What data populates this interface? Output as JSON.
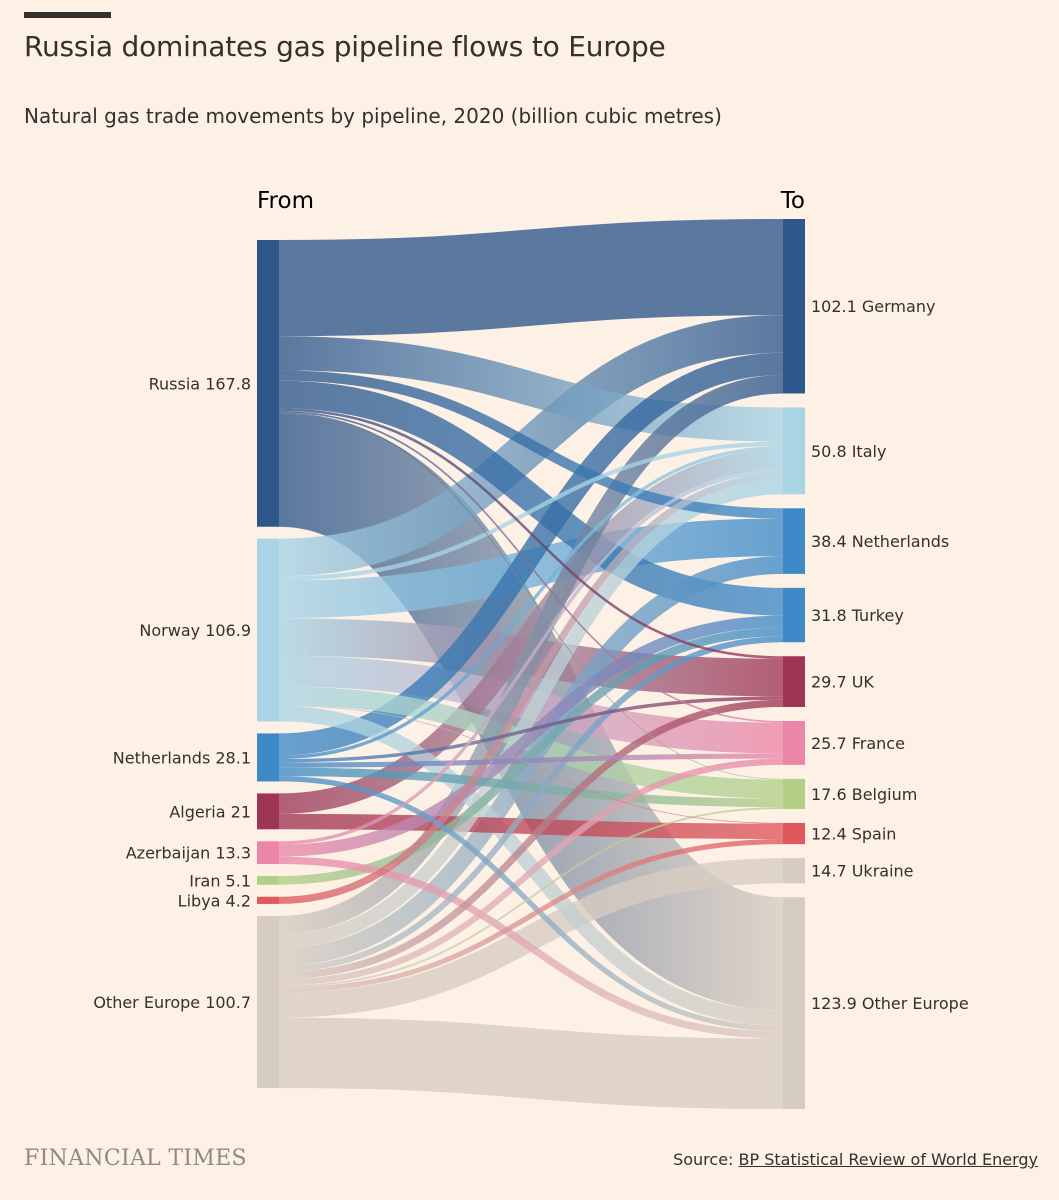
{
  "header": {
    "title": "Russia dominates gas pipeline flows to Europe",
    "subtitle": "Natural gas trade movements by pipeline, 2020 (billion cubic metres)"
  },
  "footer": {
    "logo": "FINANCIAL TIMES",
    "source_label": "Source:",
    "source_link": "BP Statistical Review of World Energy"
  },
  "chart_data": {
    "type": "sankey",
    "title": "Russia dominates gas pipeline flows to Europe",
    "subtitle": "Natural gas trade movements by pipeline, 2020 (billion cubic metres)",
    "column_labels": {
      "from": "From",
      "to": "To"
    },
    "sources": [
      {
        "name": "Russia",
        "value": 167.8,
        "label": "Russia 167.8",
        "color": "#2d568b"
      },
      {
        "name": "Norway",
        "value": 106.9,
        "label": "Norway 106.9",
        "color": "#a8d4e6"
      },
      {
        "name": "Netherlands",
        "value": 28.1,
        "label": "Netherlands 28.1",
        "color": "#3e8ac8"
      },
      {
        "name": "Algeria",
        "value": 21,
        "label": "Algeria 21",
        "color": "#9e3554"
      },
      {
        "name": "Azerbaijan",
        "value": 13.3,
        "label": "Azerbaijan 13.3",
        "color": "#ec86a8"
      },
      {
        "name": "Iran",
        "value": 5.1,
        "label": "Iran 5.1",
        "color": "#b3cf86"
      },
      {
        "name": "Libya",
        "value": 4.2,
        "label": "Libya 4.2",
        "color": "#e0575c"
      },
      {
        "name": "Other Europe",
        "value": 100.7,
        "label": "Other Europe 100.7",
        "color": "#d7ccc1"
      }
    ],
    "targets": [
      {
        "name": "Germany",
        "value": 102.1,
        "label": "102.1 Germany",
        "color": "#2d568b"
      },
      {
        "name": "Italy",
        "value": 50.8,
        "label": "50.8 Italy",
        "color": "#a8d4e6"
      },
      {
        "name": "Netherlands",
        "value": 38.4,
        "label": "38.4 Netherlands",
        "color": "#3e8ac8"
      },
      {
        "name": "Turkey",
        "value": 31.8,
        "label": "31.8 Turkey",
        "color": "#3e8ac8"
      },
      {
        "name": "UK",
        "value": 29.7,
        "label": "29.7 UK",
        "color": "#9e3554"
      },
      {
        "name": "France",
        "value": 25.7,
        "label": "25.7 France",
        "color": "#ec86a8"
      },
      {
        "name": "Belgium",
        "value": 17.6,
        "label": "17.6 Belgium",
        "color": "#b3cf86"
      },
      {
        "name": "Spain",
        "value": 12.4,
        "label": "12.4 Spain",
        "color": "#e0575c"
      },
      {
        "name": "Ukraine",
        "value": 14.7,
        "label": "14.7 Ukraine",
        "color": "#d7ccc1"
      },
      {
        "name": "Other Europe",
        "value": 123.9,
        "label": "123.9 Other Europe",
        "color": "#d7ccc1"
      }
    ],
    "links": [
      {
        "source": "Russia",
        "target": "Germany",
        "value": 56.3
      },
      {
        "source": "Russia",
        "target": "Italy",
        "value": 20.0
      },
      {
        "source": "Russia",
        "target": "Netherlands",
        "value": 6.0
      },
      {
        "source": "Russia",
        "target": "Turkey",
        "value": 16.2
      },
      {
        "source": "Russia",
        "target": "UK",
        "value": 1.5
      },
      {
        "source": "Russia",
        "target": "France",
        "value": 1.0
      },
      {
        "source": "Russia",
        "target": "Belgium",
        "value": 0.5
      },
      {
        "source": "Russia",
        "target": "Other Europe",
        "value": 66.3
      },
      {
        "source": "Norway",
        "target": "Germany",
        "value": 22.0
      },
      {
        "source": "Norway",
        "target": "Italy",
        "value": 2.5
      },
      {
        "source": "Norway",
        "target": "Netherlands",
        "value": 22.0
      },
      {
        "source": "Norway",
        "target": "UK",
        "value": 22.0
      },
      {
        "source": "Norway",
        "target": "France",
        "value": 18.0
      },
      {
        "source": "Norway",
        "target": "Belgium",
        "value": 11.0
      },
      {
        "source": "Norway",
        "target": "Spain",
        "value": 0.4
      },
      {
        "source": "Norway",
        "target": "Other Europe",
        "value": 9.0
      },
      {
        "source": "Netherlands",
        "target": "Germany",
        "value": 13.0
      },
      {
        "source": "Netherlands",
        "target": "Italy",
        "value": 2.0
      },
      {
        "source": "Netherlands",
        "target": "UK",
        "value": 2.0
      },
      {
        "source": "Netherlands",
        "target": "France",
        "value": 3.0
      },
      {
        "source": "Netherlands",
        "target": "Belgium",
        "value": 5.0
      },
      {
        "source": "Netherlands",
        "target": "Other Europe",
        "value": 3.1
      },
      {
        "source": "Algeria",
        "target": "Italy",
        "value": 12.0
      },
      {
        "source": "Algeria",
        "target": "Spain",
        "value": 9.0
      },
      {
        "source": "Azerbaijan",
        "target": "Italy",
        "value": 2.0
      },
      {
        "source": "Azerbaijan",
        "target": "Turkey",
        "value": 7.0
      },
      {
        "source": "Azerbaijan",
        "target": "Other Europe",
        "value": 4.3
      },
      {
        "source": "Iran",
        "target": "Turkey",
        "value": 5.1
      },
      {
        "source": "Libya",
        "target": "Italy",
        "value": 4.2
      },
      {
        "source": "Other Europe",
        "target": "Germany",
        "value": 10.8
      },
      {
        "source": "Other Europe",
        "target": "Italy",
        "value": 8.1
      },
      {
        "source": "Other Europe",
        "target": "Netherlands",
        "value": 10.4
      },
      {
        "source": "Other Europe",
        "target": "Turkey",
        "value": 3.5
      },
      {
        "source": "Other Europe",
        "target": "UK",
        "value": 4.2
      },
      {
        "source": "Other Europe",
        "target": "France",
        "value": 3.7
      },
      {
        "source": "Other Europe",
        "target": "Belgium",
        "value": 1.1
      },
      {
        "source": "Other Europe",
        "target": "Spain",
        "value": 3.0
      },
      {
        "source": "Other Europe",
        "target": "Ukraine",
        "value": 14.7
      },
      {
        "source": "Other Europe",
        "target": "Other Europe",
        "value": 41.2
      }
    ]
  }
}
